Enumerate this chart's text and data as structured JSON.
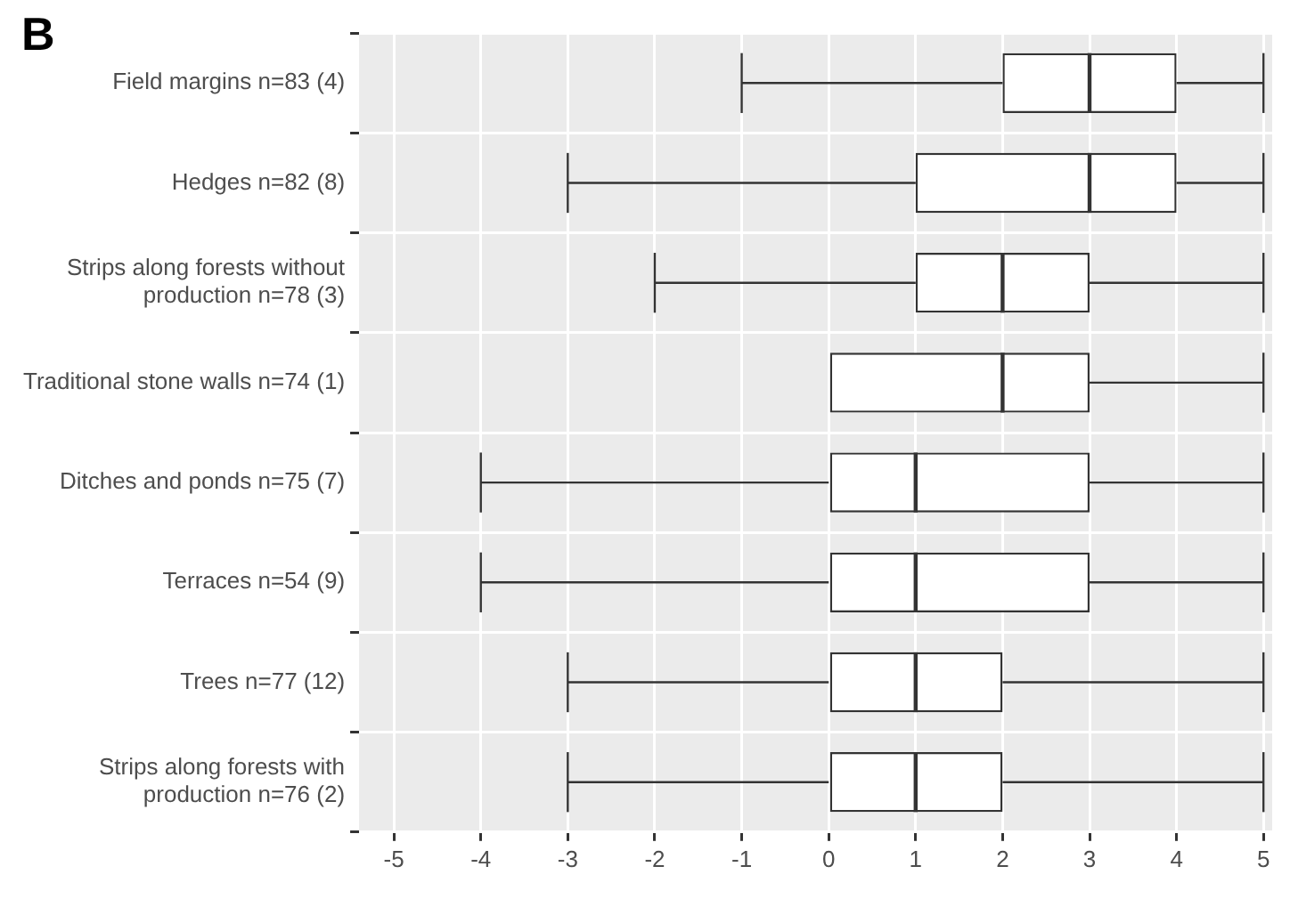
{
  "chart_data": {
    "type": "box",
    "orientation": "horizontal",
    "annotations": [
      "B"
    ],
    "categories": [
      "Field margins n=83 (4)",
      "Hedges n=82 (8)",
      "Strips along forests without\nproduction n=78 (3)",
      "Traditional stone walls n=74 (1)",
      "Ditches and ponds n=75 (7)",
      "Terraces n=54 (9)",
      "Trees n=77 (12)",
      "Strips along forests with\nproduction n=76 (2)"
    ],
    "boxes": [
      {
        "low": -1,
        "q1": 2,
        "median": 3,
        "q3": 4,
        "high": 5
      },
      {
        "low": -3,
        "q1": 1,
        "median": 3,
        "q3": 4,
        "high": 5
      },
      {
        "low": -2,
        "q1": 1,
        "median": 2,
        "q3": 3,
        "high": 5
      },
      {
        "low": 0,
        "q1": 0,
        "median": 2,
        "q3": 3,
        "high": 5
      },
      {
        "low": -4,
        "q1": 0,
        "median": 1,
        "q3": 3,
        "high": 5
      },
      {
        "low": -4,
        "q1": 0,
        "median": 1,
        "q3": 3,
        "high": 5
      },
      {
        "low": -3,
        "q1": 0,
        "median": 1,
        "q3": 2,
        "high": 5
      },
      {
        "low": -3,
        "q1": 0,
        "median": 1,
        "q3": 2,
        "high": 5
      }
    ],
    "xlim": [
      -5.4,
      5.1
    ],
    "xticks": [
      -5,
      -4,
      -3,
      -2,
      -1,
      0,
      1,
      2,
      3,
      4,
      5
    ],
    "grid": true,
    "legend": false
  }
}
